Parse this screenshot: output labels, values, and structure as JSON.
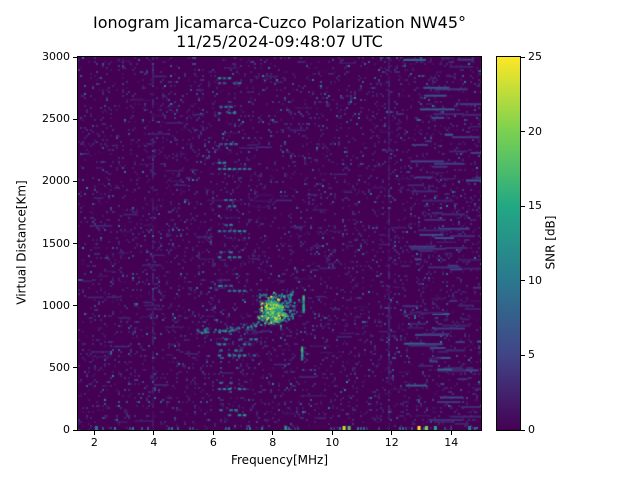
{
  "figure": {
    "title_line1": "Ionogram Jicamarca-Cuzco Polarization NW45°",
    "title_line2": "11/25/2024-09:48:07 UTC",
    "xlabel": "Frequency[MHz]",
    "ylabel": "Virtual Distance[Km]",
    "colorbar_label": "SNR [dB]"
  },
  "chart_data": {
    "type": "heatmap",
    "title": "Ionogram Jicamarca-Cuzco Polarization NW45°",
    "subtitle": "11/25/2024-09:48:07 UTC",
    "xlabel": "Frequency[MHz]",
    "ylabel": "Virtual Distance[Km]",
    "xlim": [
      1.45,
      15.0
    ],
    "ylim": [
      0,
      3000
    ],
    "x_ticks": [
      2,
      4,
      6,
      8,
      10,
      12,
      14
    ],
    "y_ticks": [
      0,
      500,
      1000,
      1500,
      2000,
      2500,
      3000
    ],
    "grid": false,
    "colorbar": {
      "label": "SNR [dB]",
      "ticks": [
        0,
        5,
        10,
        15,
        20,
        25
      ],
      "range": [
        0,
        25
      ]
    },
    "colormap": {
      "name": "viridis",
      "stops": [
        {
          "t": 0.0,
          "rgb": [
            68,
            1,
            84
          ]
        },
        {
          "t": 0.2,
          "rgb": [
            65,
            68,
            135
          ]
        },
        {
          "t": 0.4,
          "rgb": [
            42,
            120,
            142
          ]
        },
        {
          "t": 0.6,
          "rgb": [
            34,
            168,
            132
          ]
        },
        {
          "t": 0.8,
          "rgb": [
            122,
            209,
            81
          ]
        },
        {
          "t": 1.0,
          "rgb": [
            253,
            231,
            37
          ]
        }
      ]
    },
    "background_snr_db": 0,
    "features": {
      "echo_trace": [
        [
          5.5,
          798
        ],
        [
          5.62,
          801
        ],
        [
          5.74,
          804
        ],
        [
          5.86,
          806
        ],
        [
          5.98,
          808
        ],
        [
          6.1,
          810
        ],
        [
          6.22,
          812
        ],
        [
          6.34,
          815
        ],
        [
          6.46,
          818
        ],
        [
          6.58,
          821
        ],
        [
          6.7,
          824
        ],
        [
          6.82,
          828
        ],
        [
          6.94,
          832
        ],
        [
          7.06,
          837
        ],
        [
          7.18,
          842
        ],
        [
          7.3,
          848
        ],
        [
          7.42,
          855
        ],
        [
          7.54,
          862
        ]
      ],
      "f_region_cluster": {
        "freq_range": [
          7.5,
          8.7
        ],
        "km_range": [
          870,
          1100
        ],
        "core_freq": 8.0,
        "core_freq_sigma": 0.18,
        "core_km": 960,
        "core_km_sigma": 48,
        "snr_core": [
          10,
          25
        ],
        "n_core": 260,
        "n_halo": 150
      },
      "vertical_dashes": [
        {
          "freq": 9.0,
          "km_range": [
            955,
            1080
          ],
          "snr": 16
        },
        {
          "freq": 8.95,
          "km_range": [
            575,
            665
          ],
          "snr": 13
        }
      ],
      "interference_columns": [
        3.95,
        11.87
      ],
      "interference_dashes": [
        {
          "f": [
            6.15,
            6.65
          ],
          "km": 2830,
          "snr": 10
        },
        {
          "f": [
            6.15,
            7.0
          ],
          "km": 2790,
          "snr": 9
        },
        {
          "f": [
            6.2,
            6.6
          ],
          "km": 2600,
          "snr": 9
        },
        {
          "f": [
            6.15,
            6.7
          ],
          "km": 2550,
          "snr": 10
        },
        {
          "f": [
            6.2,
            6.9
          ],
          "km": 2300,
          "snr": 9
        },
        {
          "f": [
            6.15,
            6.6
          ],
          "km": 2150,
          "snr": 10
        },
        {
          "f": [
            6.15,
            7.3
          ],
          "km": 2100,
          "snr": 11
        },
        {
          "f": [
            6.2,
            6.7
          ],
          "km": 1850,
          "snr": 8
        },
        {
          "f": [
            6.15,
            6.9
          ],
          "km": 1800,
          "snr": 9
        },
        {
          "f": [
            6.2,
            6.65
          ],
          "km": 1650,
          "snr": 9
        },
        {
          "f": [
            6.15,
            7.0
          ],
          "km": 1600,
          "snr": 10
        },
        {
          "f": [
            6.2,
            6.7
          ],
          "km": 1430,
          "snr": 9
        },
        {
          "f": [
            6.15,
            6.9
          ],
          "km": 1390,
          "snr": 10
        },
        {
          "f": [
            6.2,
            6.65
          ],
          "km": 1160,
          "snr": 10
        },
        {
          "f": [
            6.15,
            7.1
          ],
          "km": 1120,
          "snr": 11
        },
        {
          "f": [
            6.2,
            7.5
          ],
          "km": 730,
          "snr": 10
        },
        {
          "f": [
            6.15,
            7.6
          ],
          "km": 690,
          "snr": 11
        },
        {
          "f": [
            6.2,
            6.9
          ],
          "km": 640,
          "snr": 10
        },
        {
          "f": [
            6.15,
            7.4
          ],
          "km": 600,
          "snr": 11
        },
        {
          "f": [
            6.2,
            6.7
          ],
          "km": 380,
          "snr": 9
        },
        {
          "f": [
            6.15,
            7.0
          ],
          "km": 330,
          "snr": 10
        },
        {
          "f": [
            6.2,
            6.8
          ],
          "km": 160,
          "snr": 10
        },
        {
          "f": [
            6.15,
            7.2
          ],
          "km": 120,
          "snr": 11
        }
      ],
      "bottom_dots": [
        {
          "freq": 2.05,
          "snr": 10
        },
        {
          "freq": 8.42,
          "snr": 12
        },
        {
          "freq": 10.38,
          "snr": 23
        },
        {
          "freq": 10.55,
          "snr": 18
        },
        {
          "freq": 12.9,
          "snr": 25
        },
        {
          "freq": 13.15,
          "snr": 20
        },
        {
          "freq": 13.45,
          "snr": 15
        },
        {
          "freq": 14.6,
          "snr": 11
        }
      ]
    },
    "render": {
      "seed": 20241125,
      "speckle_density": 0.13,
      "streaks": 150,
      "right_region_start": 12.35,
      "right_streaks": 90,
      "bottom_noise_density": 0.3
    }
  }
}
